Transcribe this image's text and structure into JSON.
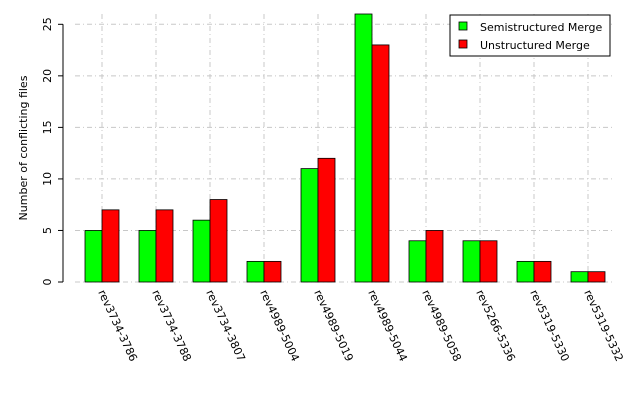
{
  "chart_data": {
    "type": "bar",
    "title": "",
    "xlabel": "",
    "ylabel": "Number of conflicting files",
    "ylim": [
      0,
      26
    ],
    "yticks": [
      0,
      5,
      10,
      15,
      20,
      25
    ],
    "grid": true,
    "legend_position": "top-right",
    "categories": [
      "rev3734-3786",
      "rev3734-3788",
      "rev3734-3807",
      "rev4989-5004",
      "rev4989-5019",
      "rev4989-5044",
      "rev4989-5058",
      "rev5266-5336",
      "rev5319-5330",
      "rev5319-5332"
    ],
    "series": [
      {
        "name": "Semistructured Merge",
        "color": "#00ff00",
        "values": [
          5,
          5,
          6,
          2,
          11,
          26,
          4,
          4,
          2,
          1
        ]
      },
      {
        "name": "Unstructured Merge",
        "color": "#ff0000",
        "values": [
          7,
          7,
          8,
          2,
          12,
          23,
          5,
          4,
          2,
          1
        ]
      }
    ]
  }
}
